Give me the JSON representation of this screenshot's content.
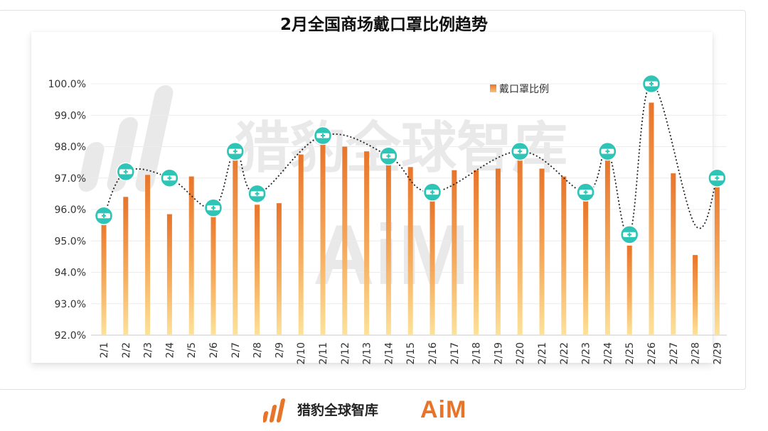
{
  "chart_data": {
    "type": "bar",
    "title": "2月全国商场戴口罩比例趋势",
    "legend": {
      "label": "戴口罩比例",
      "position": "top-right"
    },
    "categories": [
      "2/1",
      "2/2",
      "2/3",
      "2/4",
      "2/5",
      "2/6",
      "2/7",
      "2/8",
      "2/9",
      "2/10",
      "2/11",
      "2/12",
      "2/13",
      "2/14",
      "2/15",
      "2/16",
      "2/17",
      "2/18",
      "2/19",
      "2/20",
      "2/21",
      "2/22",
      "2/23",
      "2/24",
      "2/25",
      "2/26",
      "2/27",
      "2/28",
      "2/29"
    ],
    "series": [
      {
        "name": "戴口罩比例",
        "values": [
          95.8,
          96.4,
          97.1,
          95.85,
          97.05,
          96.05,
          97.9,
          96.15,
          96.2,
          97.75,
          98.1,
          98.0,
          97.85,
          97.5,
          97.35,
          96.3,
          97.25,
          97.25,
          97.3,
          97.7,
          97.3,
          97.05,
          96.3,
          97.6,
          94.85,
          99.4,
          97.15,
          94.55,
          97.0
        ]
      }
    ],
    "trend_markers": {
      "description_text": "",
      "points": [
        {
          "category": "2/1",
          "value": 95.8
        },
        {
          "category": "2/2",
          "value": 97.2
        },
        {
          "category": "2/4",
          "value": 97.0
        },
        {
          "category": "2/6",
          "value": 96.05
        },
        {
          "category": "2/7",
          "value": 97.85
        },
        {
          "category": "2/8",
          "value": 96.5
        },
        {
          "category": "2/11",
          "value": 98.35
        },
        {
          "category": "2/14",
          "value": 97.7
        },
        {
          "category": "2/16",
          "value": 96.55
        },
        {
          "category": "2/20",
          "value": 97.85
        },
        {
          "category": "2/23",
          "value": 96.55
        },
        {
          "category": "2/24",
          "value": 97.85
        },
        {
          "category": "2/25",
          "value": 95.2
        },
        {
          "category": "2/26",
          "value": 100.0
        },
        {
          "category": "2/28",
          "value": 95.5
        },
        {
          "category": "2/29",
          "value": 97.0
        }
      ]
    },
    "y_ticks": [
      "92.0%",
      "93.0%",
      "94.0%",
      "95.0%",
      "96.0%",
      "97.0%",
      "98.0%",
      "99.0%",
      "100.0%"
    ],
    "ylim": [
      92,
      100
    ],
    "xlabel": "",
    "ylabel": "",
    "grid": true,
    "colors": {
      "bar_top": "#e8742a",
      "bar_bottom": "#fde29a",
      "marker_fill": "#2ec4b6",
      "marker_band": "#ffffff",
      "trend_line": "#222222",
      "grid": "#ececec"
    }
  },
  "watermark": {
    "brand_text": "猎豹全球智库",
    "aim_text": "AiM"
  },
  "footer": {
    "brand_text": "猎豹全球智库",
    "aim_text": "AiM"
  }
}
